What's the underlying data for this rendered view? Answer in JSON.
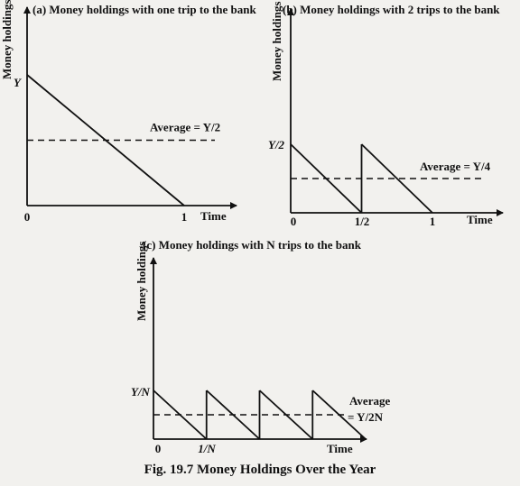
{
  "caption": "Fig. 19.7 Money Holdings Over the Year",
  "chart_data": [
    {
      "type": "line",
      "title": "(a) Money holdings with one trip to the bank",
      "xlabel": "Time",
      "ylabel": "Money holdings",
      "x_ticks": [
        "0",
        "1"
      ],
      "y_ticks": [
        "Y"
      ],
      "series": [
        {
          "name": "",
          "x": [
            0,
            1
          ],
          "y": [
            1,
            0
          ]
        }
      ],
      "average": {
        "label": "Average = Y/2",
        "y": 0.5
      },
      "xlim": [
        0,
        1.25
      ],
      "ylim": [
        0,
        1.12
      ],
      "grid": false
    },
    {
      "type": "line",
      "title": "(b) Money holdings with 2 trips to the bank",
      "xlabel": "Time",
      "ylabel": "Money holdings",
      "x_ticks": [
        "0",
        "1/2",
        "1"
      ],
      "y_ticks": [
        "Y/2"
      ],
      "series": [
        {
          "name": "",
          "x": [
            0,
            0.5,
            0.5,
            1
          ],
          "y": [
            0.5,
            0,
            0.5,
            0
          ]
        }
      ],
      "average": {
        "label": "Average = Y/4",
        "y": 0.25
      },
      "xlim": [
        0,
        1.4
      ],
      "ylim": [
        0,
        1.12
      ],
      "grid": false
    },
    {
      "type": "line",
      "title": "(c) Money holdings with N trips to the bank",
      "xlabel": "Time",
      "ylabel": "Money holdings",
      "x_ticks": [
        "0",
        "1/N"
      ],
      "y_ticks": [
        "Y/N"
      ],
      "series": [
        {
          "name": "",
          "x": [
            0,
            0.25,
            0.25,
            0.5,
            0.5,
            0.75,
            0.75,
            1
          ],
          "y": [
            0.25,
            0,
            0.25,
            0,
            0.25,
            0,
            0.25,
            0
          ]
        }
      ],
      "average": {
        "label_line1": "Average",
        "label_line2": "= Y/2N",
        "y": 0.125
      },
      "xlim": [
        0,
        1.05
      ],
      "ylim": [
        0,
        0.7
      ],
      "grid": false
    }
  ]
}
